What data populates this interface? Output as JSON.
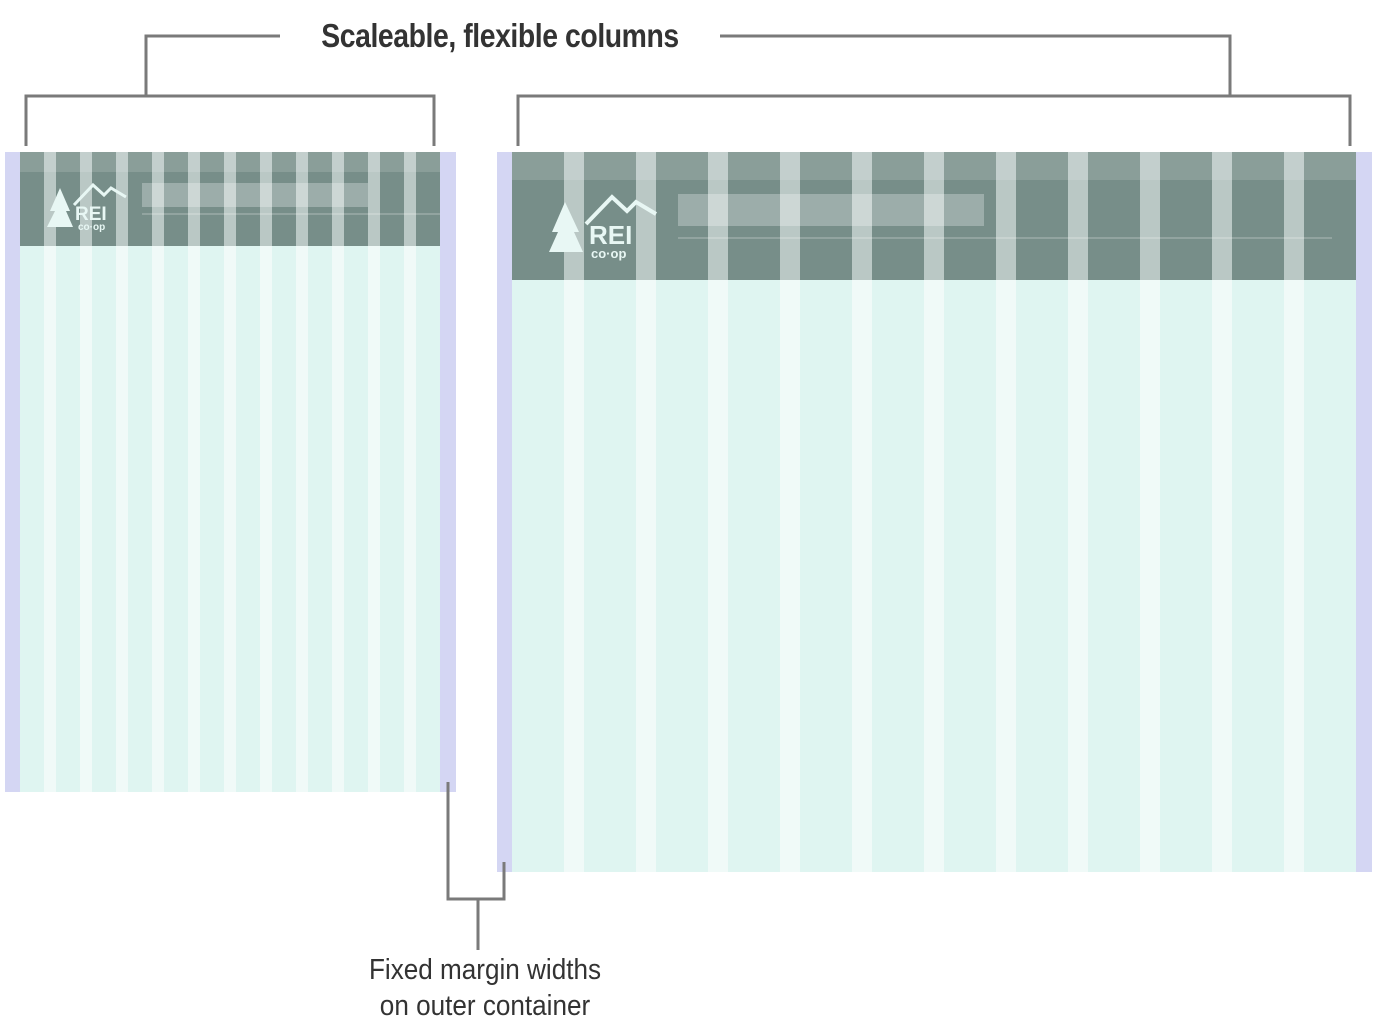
{
  "heading": "Scaleable, flexible columns",
  "caption": {
    "line1": "Fixed margin widths",
    "line2": "on outer container"
  },
  "logo": {
    "wordmark": "REI",
    "sub": "co·op"
  },
  "icons": [
    "tree-icon",
    "mountain-icon"
  ],
  "colors": {
    "annotation_line": "#7a7a7a",
    "annotation_text": "#333333",
    "margin": "#d4d6f3",
    "column": "#dff5f1",
    "gutter": "#f0faf8",
    "header_dark": "#778e89",
    "header_gutter": "#bac8c5",
    "header_band": "#8da39e",
    "search_bar": "#9fb3ad"
  }
}
